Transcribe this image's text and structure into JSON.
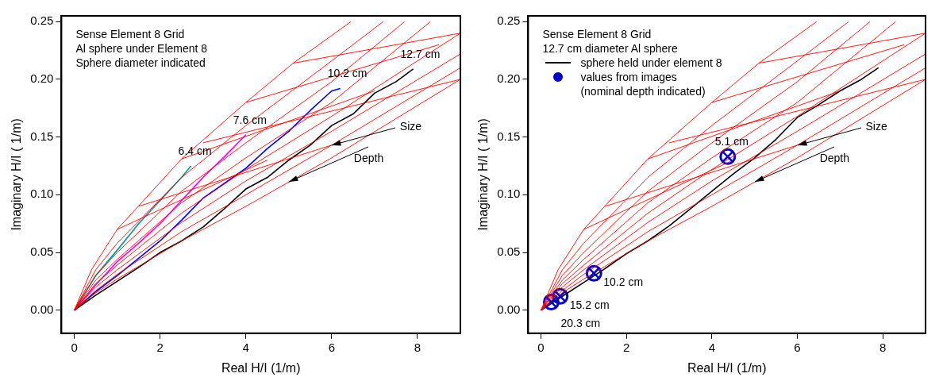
{
  "chart_data": [
    {
      "type": "line",
      "xlabel": "Real H/I (1/m)",
      "ylabel": "Imaginary H/I ( 1/m)",
      "xlim": [
        -0.3,
        9
      ],
      "ylim": [
        -0.02,
        0.255
      ],
      "xticks": [
        0,
        2,
        4,
        6,
        8
      ],
      "yticks": [
        {
          "value": 0,
          "label": "0.00"
        },
        {
          "value": 0.05,
          "label": "0.05"
        },
        {
          "value": 0.1,
          "label": "0.10"
        },
        {
          "value": 0.15,
          "label": "0.15"
        },
        {
          "value": 0.2,
          "label": "0.20"
        },
        {
          "value": 0.25,
          "label": "0.25"
        }
      ],
      "grid": false,
      "legend": false,
      "marker": "none",
      "annotations": [
        "Sense Element 8 Grid",
        "Al sphere under Element 8",
        "Sphere diameter indicated",
        {
          "text": "6.4 cm",
          "x": 2.72,
          "y": 0.125
        },
        {
          "text": "7.6 cm",
          "x": 4,
          "y": 0.152
        },
        {
          "text": "10.2 cm",
          "x": 6.2,
          "y": 0.192
        },
        {
          "text": "12.7 cm",
          "x": 7.9,
          "y": 0.209
        },
        {
          "text": "Size",
          "x": 6,
          "y": 0.143
        },
        {
          "text": "Depth",
          "x": 5,
          "y": 0.111
        }
      ],
      "series": [
        {
          "type": "line",
          "color": "#ff0000",
          "x": [
            0,
            0.4,
            1,
            2.5,
            4,
            5.1,
            6.45
          ],
          "values": [
            0,
            0.035,
            0.07,
            0.131,
            0.18,
            0.214,
            0.25
          ]
        },
        {
          "type": "line",
          "color": "#ff0000",
          "x": [
            0,
            0.5,
            1,
            2.5,
            4,
            6,
            7.2
          ],
          "values": [
            0,
            0.035,
            0.058,
            0.115,
            0.16,
            0.216,
            0.25
          ]
        },
        {
          "type": "line",
          "color": "#ff0000",
          "x": [
            0,
            0.5,
            1,
            2.5,
            4,
            6,
            7.7
          ],
          "values": [
            0,
            0.03,
            0.05,
            0.103,
            0.145,
            0.198,
            0.25
          ]
        },
        {
          "type": "line",
          "color": "#ff0000",
          "x": [
            0,
            0.5,
            1,
            2.5,
            4,
            6,
            8.3
          ],
          "values": [
            0,
            0.026,
            0.044,
            0.093,
            0.132,
            0.18,
            0.25
          ]
        },
        {
          "type": "line",
          "color": "#ff0000",
          "x": [
            0,
            0.5,
            1,
            2.5,
            4,
            6,
            9
          ],
          "values": [
            0,
            0.023,
            0.039,
            0.084,
            0.122,
            0.168,
            0.24
          ]
        },
        {
          "type": "line",
          "color": "#ff0000",
          "x": [
            0,
            0.5,
            1,
            2.5,
            4,
            6,
            9
          ],
          "values": [
            0,
            0.02,
            0.035,
            0.076,
            0.112,
            0.155,
            0.222
          ]
        },
        {
          "type": "line",
          "color": "#ff0000",
          "x": [
            0,
            0.5,
            1,
            2.5,
            4,
            6,
            9
          ],
          "values": [
            0,
            0.017,
            0.031,
            0.068,
            0.1,
            0.143,
            0.21
          ]
        },
        {
          "type": "line",
          "color": "#ff0000",
          "x": [
            0,
            0.5,
            1,
            2.5,
            4,
            6,
            9
          ],
          "values": [
            0,
            0.015,
            0.027,
            0.06,
            0.09,
            0.132,
            0.2
          ]
        },
        {
          "type": "line",
          "color": "#ff0000",
          "x": [
            1,
            4.5
          ],
          "values": [
            0.07,
            0.13
          ]
        },
        {
          "type": "line",
          "color": "#ff0000",
          "x": [
            1.5,
            6
          ],
          "values": [
            0.09,
            0.143
          ]
        },
        {
          "type": "line",
          "color": "#ff0000",
          "x": [
            2.5,
            7
          ],
          "values": [
            0.131,
            0.19
          ]
        },
        {
          "type": "line",
          "color": "#ff0000",
          "x": [
            3,
            9
          ],
          "values": [
            0.145,
            0.2
          ]
        },
        {
          "type": "line",
          "color": "#ff0000",
          "x": [
            4,
            8.5
          ],
          "values": [
            0.18,
            0.23
          ]
        },
        {
          "type": "line",
          "color": "#ff0000",
          "x": [
            5.1,
            9
          ],
          "values": [
            0.214,
            0.24
          ]
        },
        {
          "type": "line",
          "color": "#000000",
          "x": [
            0,
            0.5,
            1,
            1.5,
            2,
            2.5,
            3,
            3.5,
            4,
            4.5,
            5,
            5.5,
            6,
            6.5,
            7,
            7.5,
            7.9
          ],
          "values": [
            0,
            0.013,
            0.025,
            0.037,
            0.05,
            0.06,
            0.072,
            0.088,
            0.105,
            0.115,
            0.13,
            0.143,
            0.16,
            0.17,
            0.188,
            0.198,
            0.209
          ]
        },
        {
          "type": "line",
          "color": "#0000ff",
          "x": [
            0,
            0.5,
            1,
            1.5,
            2,
            2.5,
            3,
            3.5,
            4,
            4.5,
            5,
            5.5,
            6,
            6.2
          ],
          "values": [
            0,
            0.016,
            0.03,
            0.045,
            0.06,
            0.078,
            0.097,
            0.11,
            0.123,
            0.14,
            0.155,
            0.173,
            0.19,
            0.192
          ]
        },
        {
          "type": "line",
          "color": "#ff00ff",
          "x": [
            0,
            0.5,
            1,
            1.5,
            2,
            2.5,
            3,
            3.5,
            4
          ],
          "values": [
            0,
            0.022,
            0.042,
            0.058,
            0.075,
            0.095,
            0.115,
            0.133,
            0.152
          ]
        },
        {
          "type": "line",
          "color": "#009999",
          "x": [
            0,
            0.5,
            1,
            1.5,
            2,
            2.5,
            2.72
          ],
          "values": [
            0,
            0.03,
            0.052,
            0.075,
            0.095,
            0.115,
            0.125
          ]
        }
      ]
    },
    {
      "type": "line",
      "xlabel": "Real H/I (1/m)",
      "ylabel": "Imaginary H/I ( 1/m)",
      "xlim": [
        -0.3,
        9
      ],
      "ylim": [
        -0.02,
        0.255
      ],
      "xticks": [
        0,
        2,
        4,
        6,
        8
      ],
      "yticks": [
        {
          "value": 0,
          "label": "0.00"
        },
        {
          "value": 0.05,
          "label": "0.05"
        },
        {
          "value": 0.1,
          "label": "0.10"
        },
        {
          "value": 0.15,
          "label": "0.15"
        },
        {
          "value": 0.2,
          "label": "0.20"
        },
        {
          "value": 0.25,
          "label": "0.25"
        }
      ],
      "grid": false,
      "legend": "top left",
      "marker": "none",
      "annotations": [
        "Sense Element 8 Grid",
        "12.7 cm diameter Al sphere",
        {
          "text": "5.1 cm",
          "x": 4.37,
          "y": 0.133
        },
        {
          "text": "10.2 cm",
          "x": 1.24,
          "y": 0.032
        },
        {
          "text": "15.2 cm",
          "x": 0.45,
          "y": 0.012
        },
        {
          "text": "20.3 cm",
          "x": 0.24,
          "y": 0.007
        },
        {
          "text": "Size",
          "x": 6,
          "y": 0.143
        },
        {
          "text": "Depth",
          "x": 5,
          "y": 0.111
        }
      ],
      "series": [
        {
          "type": "line",
          "color": "#ff0000",
          "x": [
            0,
            0.4,
            1,
            2.5,
            4,
            5.1,
            6.45
          ],
          "values": [
            0,
            0.035,
            0.07,
            0.131,
            0.18,
            0.214,
            0.25
          ]
        },
        {
          "type": "line",
          "color": "#ff0000",
          "x": [
            0,
            0.5,
            1,
            2.5,
            4,
            6,
            7.2
          ],
          "values": [
            0,
            0.035,
            0.058,
            0.115,
            0.16,
            0.216,
            0.25
          ]
        },
        {
          "type": "line",
          "color": "#ff0000",
          "x": [
            0,
            0.5,
            1,
            2.5,
            4,
            6,
            7.7
          ],
          "values": [
            0,
            0.03,
            0.05,
            0.103,
            0.145,
            0.198,
            0.25
          ]
        },
        {
          "type": "line",
          "color": "#ff0000",
          "x": [
            0,
            0.5,
            1,
            2.5,
            4,
            6,
            8.3
          ],
          "values": [
            0,
            0.026,
            0.044,
            0.093,
            0.132,
            0.18,
            0.25
          ]
        },
        {
          "type": "line",
          "color": "#ff0000",
          "x": [
            0,
            0.5,
            1,
            2.5,
            4,
            6,
            9
          ],
          "values": [
            0,
            0.023,
            0.039,
            0.084,
            0.122,
            0.168,
            0.24
          ]
        },
        {
          "type": "line",
          "color": "#ff0000",
          "x": [
            0,
            0.5,
            1,
            2.5,
            4,
            6,
            9
          ],
          "values": [
            0,
            0.02,
            0.035,
            0.076,
            0.112,
            0.155,
            0.222
          ]
        },
        {
          "type": "line",
          "color": "#ff0000",
          "x": [
            0,
            0.5,
            1,
            2.5,
            4,
            6,
            9
          ],
          "values": [
            0,
            0.017,
            0.031,
            0.068,
            0.1,
            0.143,
            0.21
          ]
        },
        {
          "type": "line",
          "color": "#ff0000",
          "x": [
            0,
            0.5,
            1,
            2.5,
            4,
            6,
            9
          ],
          "values": [
            0,
            0.015,
            0.027,
            0.06,
            0.09,
            0.132,
            0.2
          ]
        },
        {
          "type": "line",
          "color": "#ff0000",
          "x": [
            1,
            4.5
          ],
          "values": [
            0.07,
            0.13
          ]
        },
        {
          "type": "line",
          "color": "#ff0000",
          "x": [
            1.5,
            6
          ],
          "values": [
            0.09,
            0.143
          ]
        },
        {
          "type": "line",
          "color": "#ff0000",
          "x": [
            2.5,
            7
          ],
          "values": [
            0.131,
            0.19
          ]
        },
        {
          "type": "line",
          "color": "#ff0000",
          "x": [
            3,
            9
          ],
          "values": [
            0.145,
            0.2
          ]
        },
        {
          "type": "line",
          "color": "#ff0000",
          "x": [
            4,
            8.5
          ],
          "values": [
            0.18,
            0.23
          ]
        },
        {
          "type": "line",
          "color": "#ff0000",
          "x": [
            5.1,
            9
          ],
          "values": [
            0.214,
            0.24
          ]
        },
        {
          "type": "line",
          "name": "sphere held under element 8",
          "color": "#000000",
          "x": [
            0,
            0.5,
            1,
            1.5,
            2,
            2.5,
            3,
            3.5,
            4,
            4.5,
            5,
            5.5,
            6,
            6.5,
            7,
            7.5,
            7.9
          ],
          "values": [
            0,
            0.012,
            0.024,
            0.036,
            0.049,
            0.06,
            0.073,
            0.088,
            0.103,
            0.118,
            0.132,
            0.148,
            0.167,
            0.178,
            0.19,
            0.2,
            0.21
          ]
        },
        {
          "type": "scatter",
          "marker": "circle",
          "name": "values from images\n(nominal depth indicated)",
          "color": "#0000cc",
          "x": [
            4.37,
            1.24,
            0.45,
            0.24
          ],
          "values": [
            0.133,
            0.032,
            0.012,
            0.007
          ]
        }
      ]
    }
  ]
}
